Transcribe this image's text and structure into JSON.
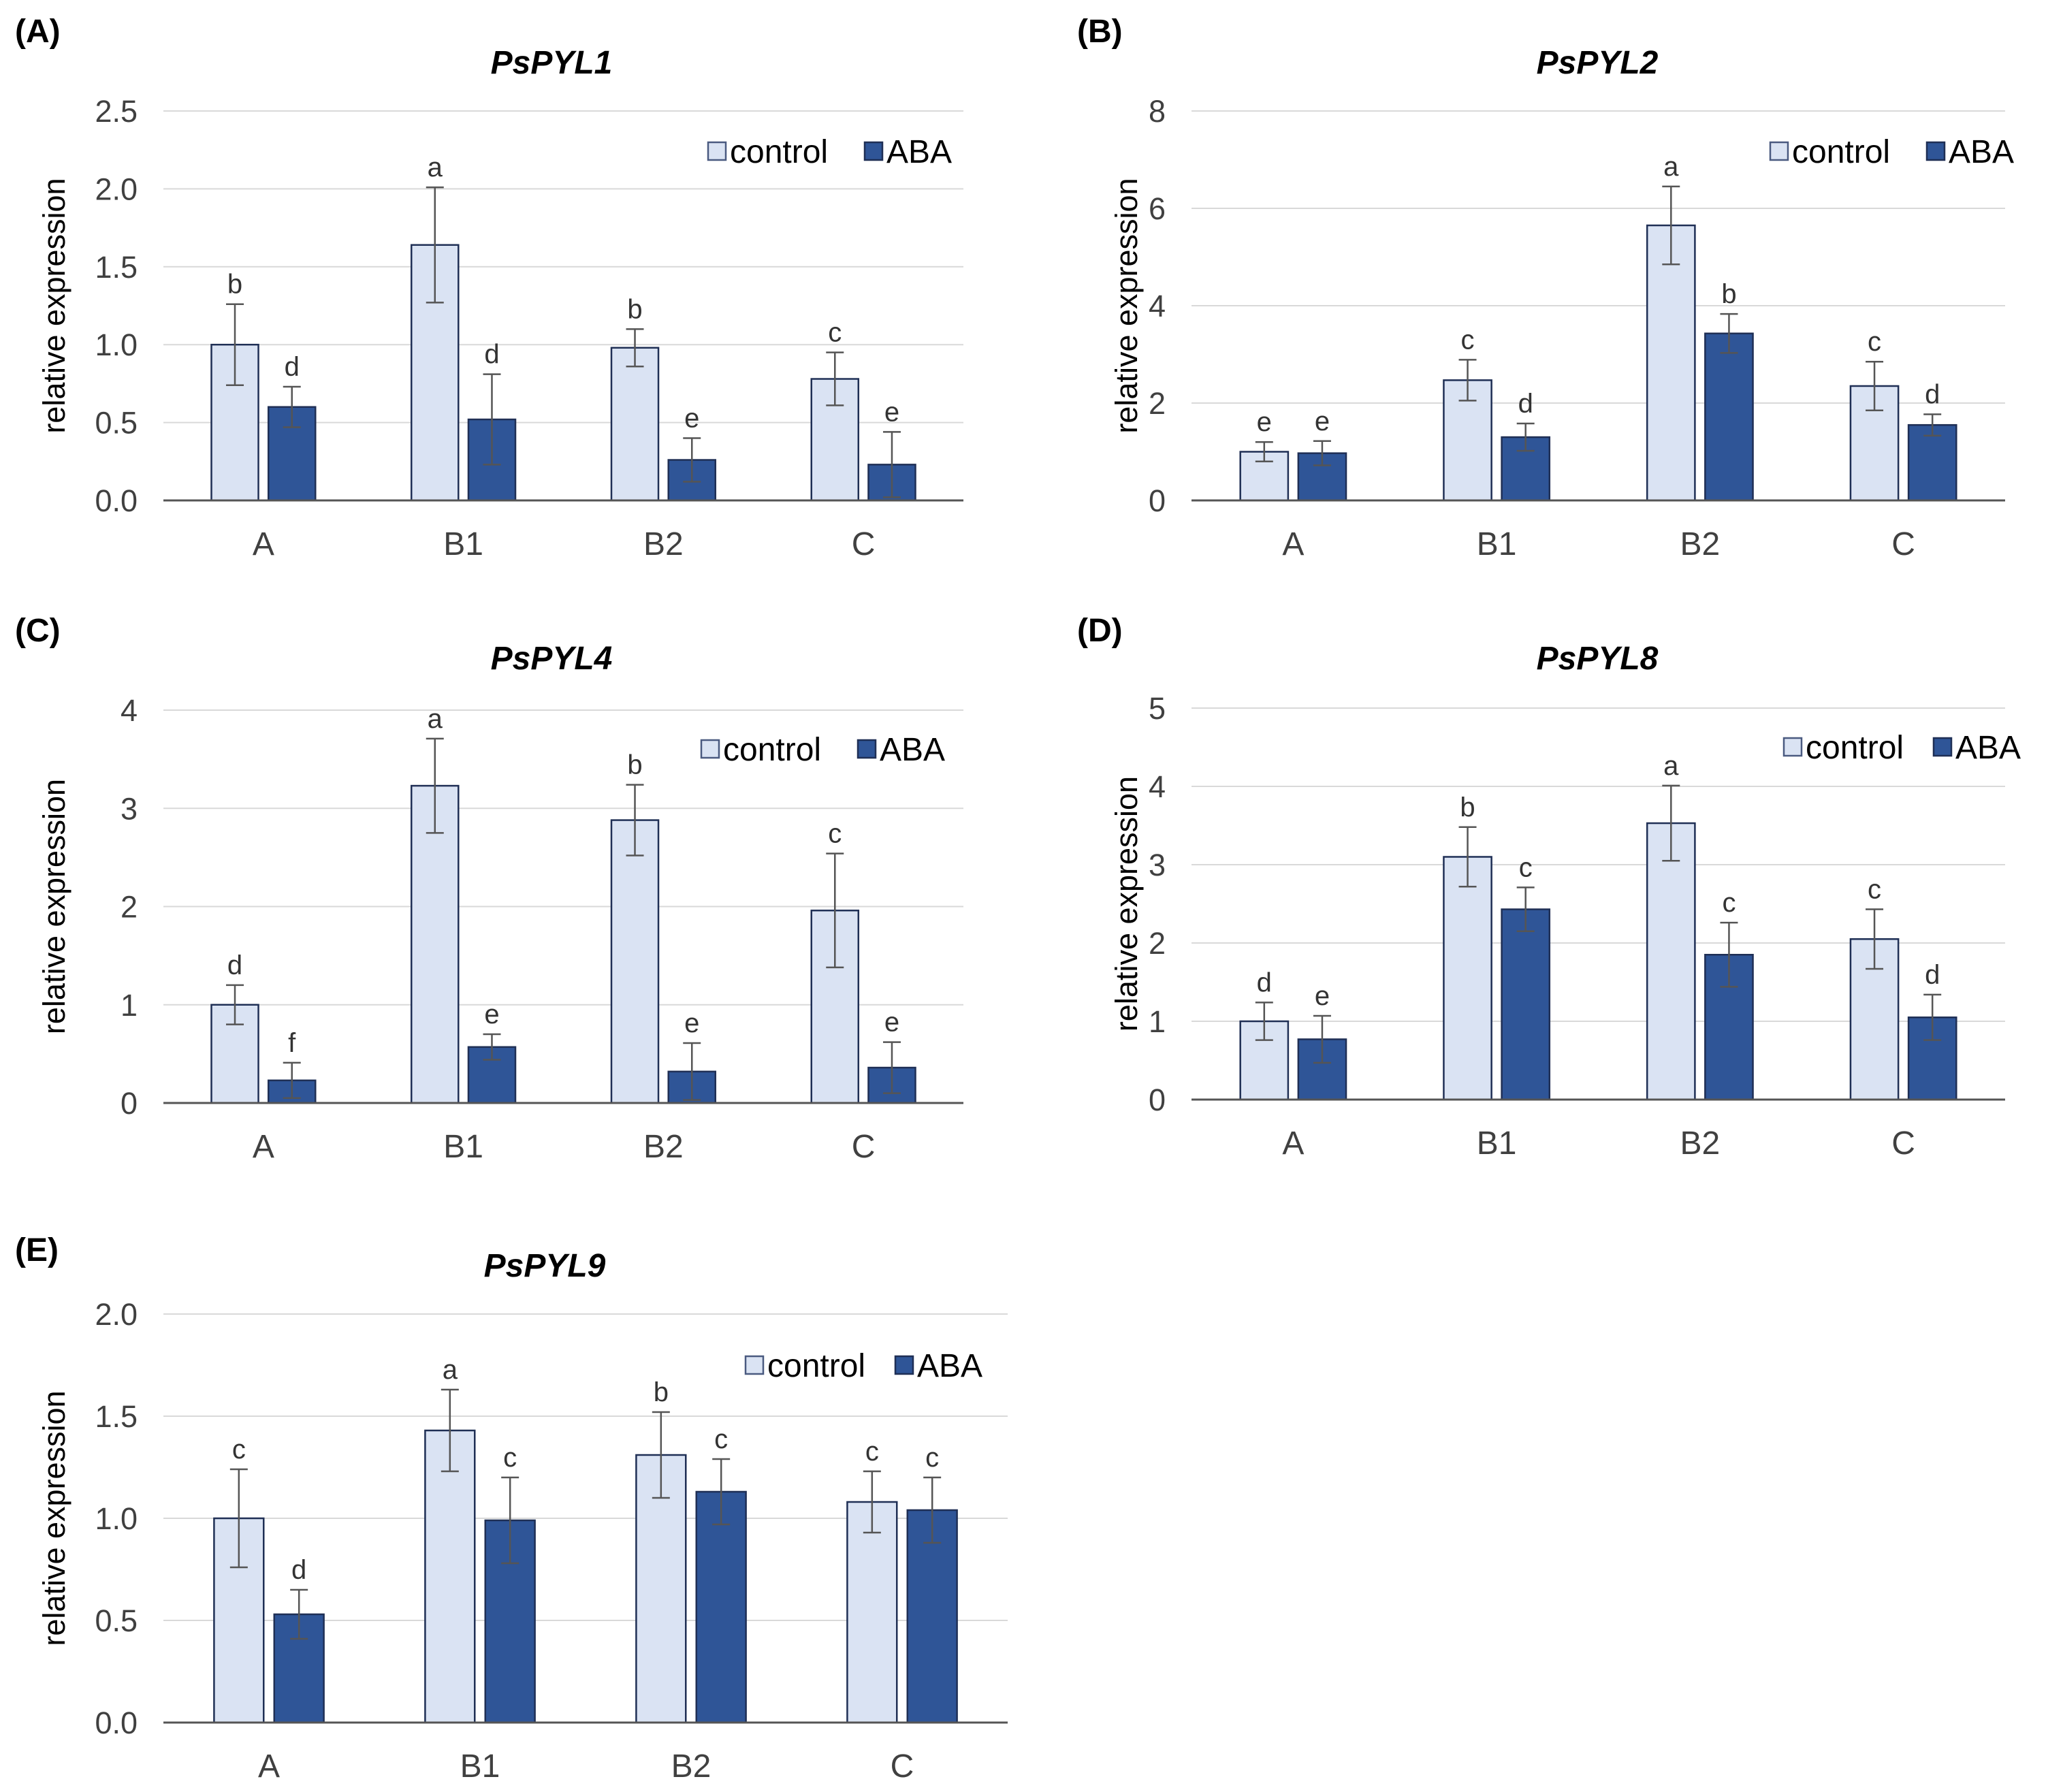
{
  "colors": {
    "control": "#dae3f3",
    "ABA": "#2f5597"
  },
  "chart_data": [
    {
      "panel_label": "(A)",
      "title": "PsPYL1",
      "type": "bar",
      "ylabel": "relative expression",
      "ylim": [
        0,
        2.5
      ],
      "yticks": [
        "0.0",
        "0.5",
        "1.0",
        "1.5",
        "2.0",
        "2.5"
      ],
      "categories": [
        "A",
        "B1",
        "B2",
        "C"
      ],
      "legend": [
        "control",
        "ABA"
      ],
      "series": [
        {
          "name": "control",
          "values": [
            1.0,
            1.64,
            0.98,
            0.78
          ],
          "errors": [
            0.26,
            0.37,
            0.12,
            0.17
          ],
          "letters": [
            "b",
            "a",
            "b",
            "c"
          ]
        },
        {
          "name": "ABA",
          "values": [
            0.6,
            0.52,
            0.26,
            0.23
          ],
          "errors": [
            0.13,
            0.29,
            0.14,
            0.21
          ],
          "letters": [
            "d",
            "d",
            "e",
            "e"
          ]
        }
      ]
    },
    {
      "panel_label": "(B)",
      "title": "PsPYL2",
      "type": "bar",
      "ylabel": "relative expression",
      "ylim": [
        0,
        8
      ],
      "yticks": [
        "0",
        "2",
        "4",
        "6",
        "8"
      ],
      "categories": [
        "A",
        "B1",
        "B2",
        "C"
      ],
      "legend": [
        "control",
        "ABA"
      ],
      "series": [
        {
          "name": "control",
          "values": [
            1.0,
            2.47,
            5.65,
            2.35
          ],
          "errors": [
            0.2,
            0.42,
            0.8,
            0.5
          ],
          "letters": [
            "e",
            "c",
            "a",
            "c"
          ]
        },
        {
          "name": "ABA",
          "values": [
            0.97,
            1.3,
            3.43,
            1.55
          ],
          "errors": [
            0.25,
            0.28,
            0.4,
            0.22
          ],
          "letters": [
            "e",
            "d",
            "b",
            "d"
          ]
        }
      ]
    },
    {
      "panel_label": "(C)",
      "title": "PsPYL4",
      "type": "bar",
      "ylabel": "relative expression",
      "ylim": [
        0,
        4
      ],
      "yticks": [
        "0",
        "1",
        "2",
        "3",
        "4"
      ],
      "categories": [
        "A",
        "B1",
        "B2",
        "C"
      ],
      "legend": [
        "control",
        "ABA"
      ],
      "series": [
        {
          "name": "control",
          "values": [
            1.0,
            3.23,
            2.88,
            1.96
          ],
          "errors": [
            0.2,
            0.48,
            0.36,
            0.58
          ],
          "letters": [
            "d",
            "a",
            "b",
            "c"
          ]
        },
        {
          "name": "ABA",
          "values": [
            0.23,
            0.57,
            0.32,
            0.36
          ],
          "errors": [
            0.18,
            0.13,
            0.29,
            0.26
          ],
          "letters": [
            "f",
            "e",
            "e",
            "e"
          ]
        }
      ]
    },
    {
      "panel_label": "(D)",
      "title": "PsPYL8",
      "type": "bar",
      "ylabel": "relative expression",
      "ylim": [
        0,
        5
      ],
      "yticks": [
        "0",
        "1",
        "2",
        "3",
        "4",
        "5"
      ],
      "categories": [
        "A",
        "B1",
        "B2",
        "C"
      ],
      "legend": [
        "control",
        "ABA"
      ],
      "series": [
        {
          "name": "control",
          "values": [
            1.0,
            3.1,
            3.53,
            2.05
          ],
          "errors": [
            0.24,
            0.38,
            0.48,
            0.38
          ],
          "letters": [
            "d",
            "b",
            "a",
            "c"
          ]
        },
        {
          "name": "ABA",
          "values": [
            0.77,
            2.43,
            1.85,
            1.05
          ],
          "errors": [
            0.3,
            0.28,
            0.41,
            0.29
          ],
          "letters": [
            "e",
            "c",
            "c",
            "d"
          ]
        }
      ]
    },
    {
      "panel_label": "(E)",
      "title": "PsPYL9",
      "type": "bar",
      "ylabel": "relative expression",
      "ylim": [
        0,
        2.0
      ],
      "yticks": [
        "0.0",
        "0.5",
        "1.0",
        "1.5",
        "2.0"
      ],
      "categories": [
        "A",
        "B1",
        "B2",
        "C"
      ],
      "legend": [
        "control",
        "ABA"
      ],
      "series": [
        {
          "name": "control",
          "values": [
            1.0,
            1.43,
            1.31,
            1.08
          ],
          "errors": [
            0.24,
            0.2,
            0.21,
            0.15
          ],
          "letters": [
            "c",
            "a",
            "b",
            "c"
          ]
        },
        {
          "name": "ABA",
          "values": [
            0.53,
            0.99,
            1.13,
            1.04
          ],
          "errors": [
            0.12,
            0.21,
            0.16,
            0.16
          ],
          "letters": [
            "d",
            "c",
            "c",
            "c"
          ]
        }
      ]
    }
  ]
}
